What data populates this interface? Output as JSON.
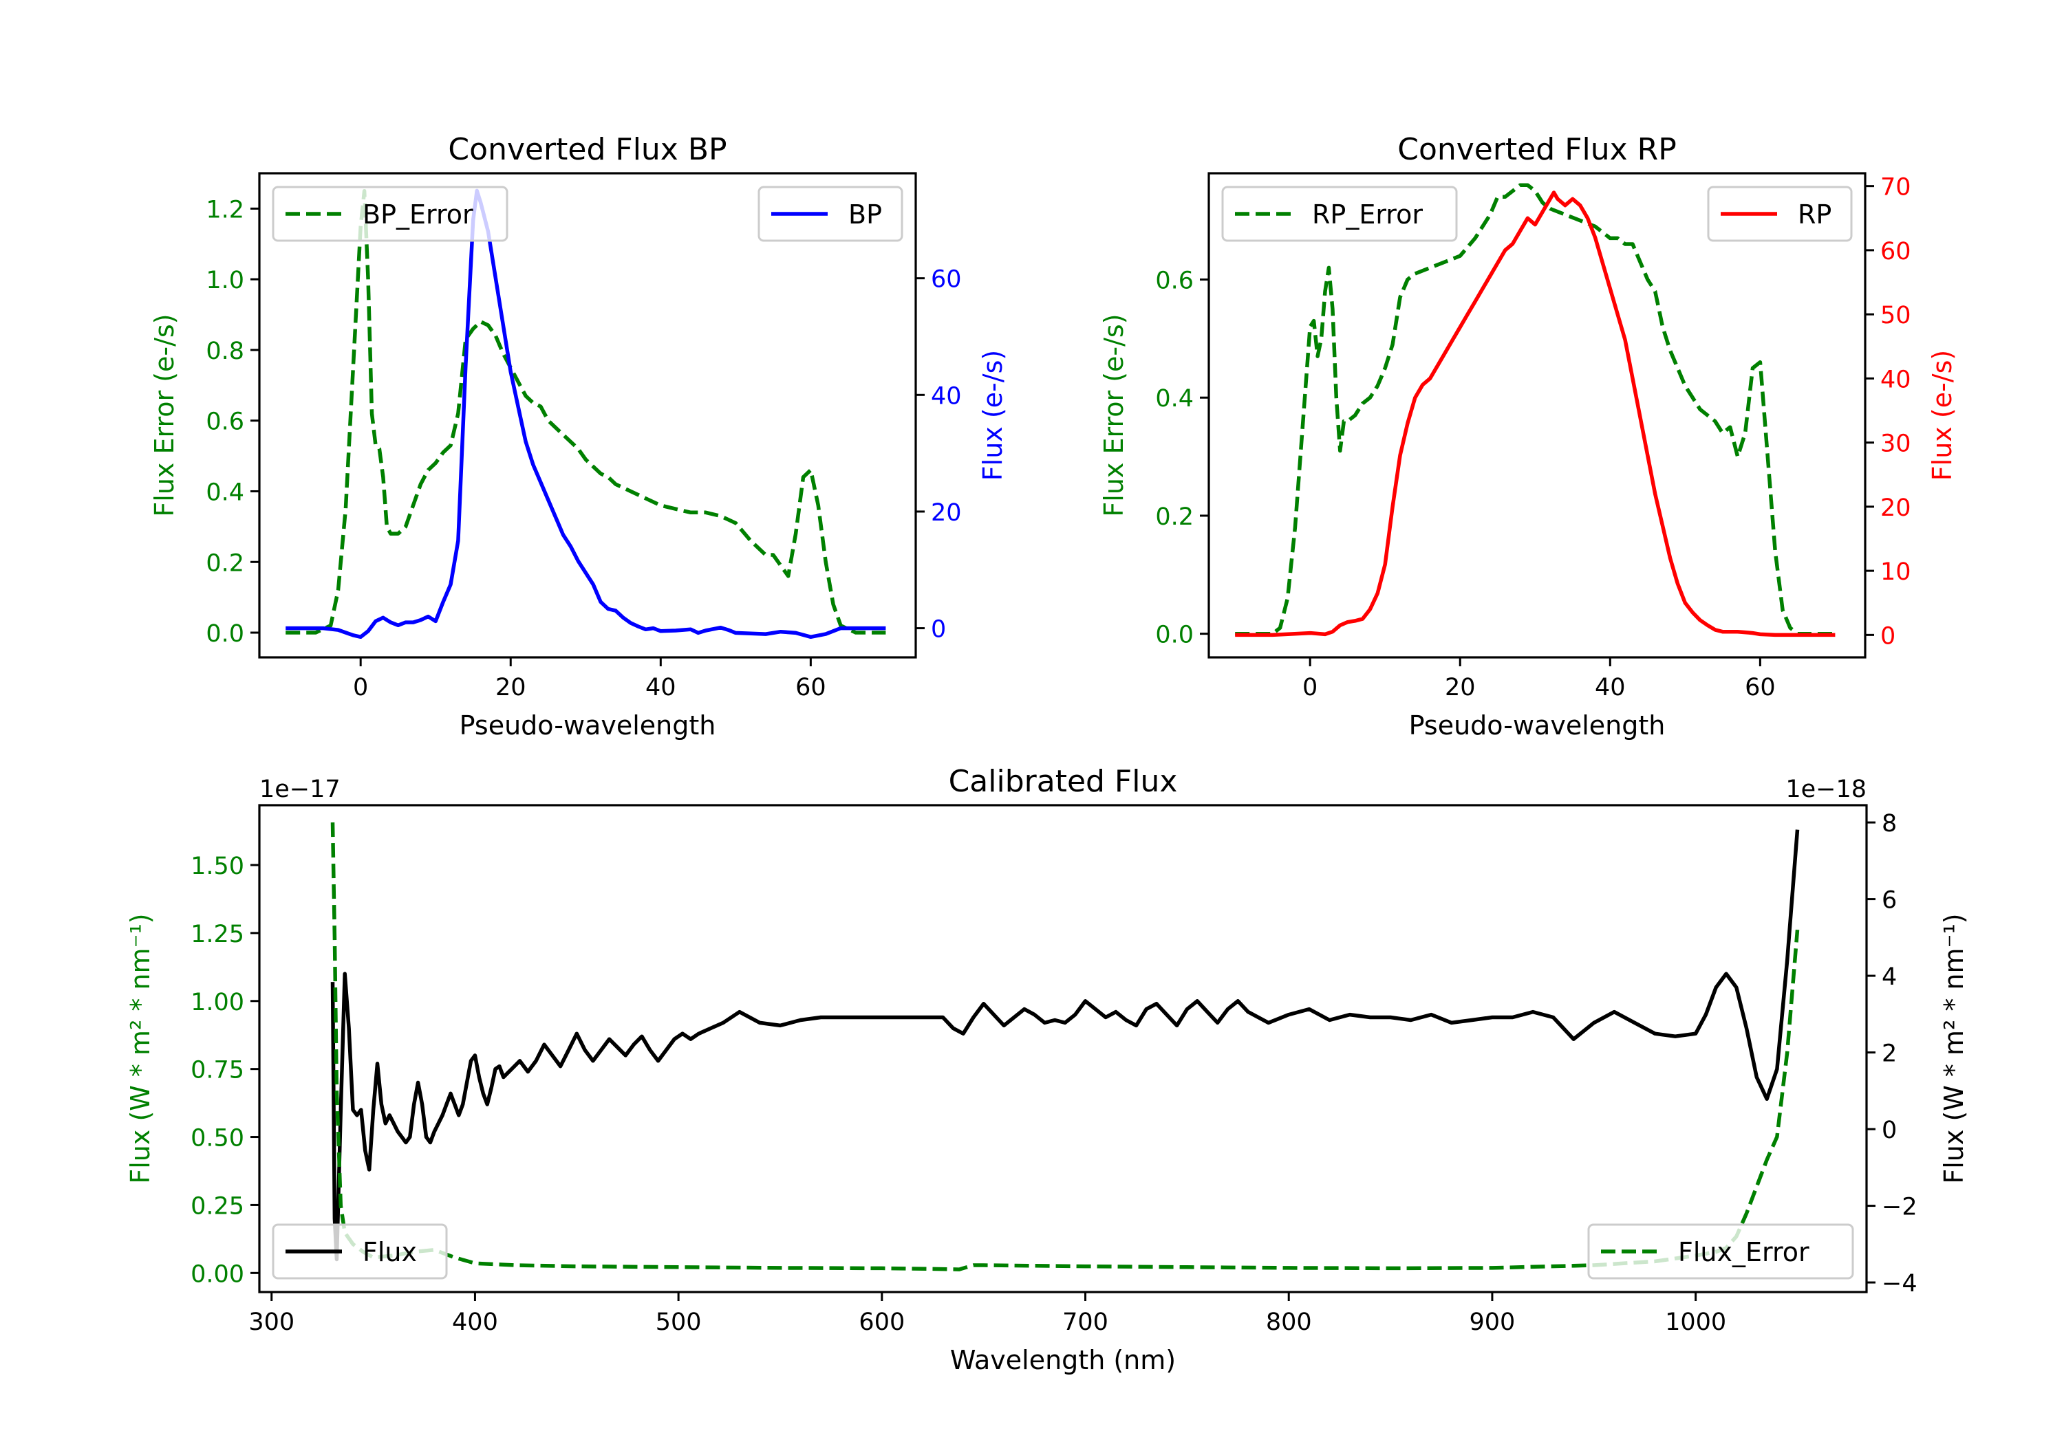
{
  "chart_data": [
    {
      "id": "bp",
      "type": "line",
      "title": "Converted Flux BP",
      "xlabel": "Pseudo-wavelength",
      "ylabel": "Flux Error (e-/s)",
      "ylabel_right": "Flux (e-/s)",
      "xlim": [
        -13.5,
        74
      ],
      "ylim": [
        -0.07,
        1.3
      ],
      "ylim_right": [
        -5,
        78
      ],
      "xticks": [
        0,
        20,
        40,
        60
      ],
      "yticks": [
        0.0,
        0.2,
        0.4,
        0.6,
        0.8,
        1.0,
        1.2
      ],
      "yticks_right": [
        0,
        20,
        40,
        60
      ],
      "ytick_labels": [
        "0.0",
        "0.2",
        "0.4",
        "0.6",
        "0.8",
        "1.0",
        "1.2"
      ],
      "ytick_labels_right": [
        "0",
        "20",
        "40",
        "60"
      ],
      "legend_left": {
        "label": "BP_Error",
        "placement": "upper left"
      },
      "legend_right": {
        "label": "BP",
        "placement": "upper right"
      },
      "series": [
        {
          "name": "BP_Error",
          "axis": "left",
          "color": "#008000",
          "style": "dashed",
          "x": [
            -10,
            -6,
            -4,
            -3,
            -2,
            -1,
            0,
            0.5,
            1,
            1.5,
            2,
            2.5,
            3,
            3.5,
            4,
            4.5,
            5,
            6,
            7,
            8,
            9,
            10,
            11,
            12,
            13,
            14,
            15,
            16,
            17,
            18,
            19,
            20,
            21,
            22,
            23,
            24,
            25,
            26,
            27,
            28,
            29,
            30,
            31,
            32,
            33,
            34,
            35,
            36,
            37,
            38,
            40,
            42,
            44,
            46,
            48,
            50,
            52,
            54,
            55,
            56,
            57,
            58,
            59,
            60,
            61,
            62,
            63,
            64,
            66,
            70
          ],
          "y": [
            0.0,
            0.0,
            0.02,
            0.12,
            0.35,
            0.75,
            1.15,
            1.25,
            1.0,
            0.62,
            0.53,
            0.52,
            0.44,
            0.3,
            0.28,
            0.28,
            0.28,
            0.3,
            0.36,
            0.42,
            0.46,
            0.48,
            0.51,
            0.53,
            0.62,
            0.83,
            0.86,
            0.88,
            0.87,
            0.84,
            0.79,
            0.75,
            0.71,
            0.67,
            0.65,
            0.64,
            0.6,
            0.58,
            0.56,
            0.54,
            0.52,
            0.49,
            0.47,
            0.45,
            0.44,
            0.42,
            0.41,
            0.4,
            0.39,
            0.38,
            0.36,
            0.35,
            0.34,
            0.34,
            0.33,
            0.31,
            0.26,
            0.22,
            0.22,
            0.19,
            0.16,
            0.28,
            0.44,
            0.46,
            0.36,
            0.2,
            0.08,
            0.02,
            0.0,
            0.0
          ]
        },
        {
          "name": "BP",
          "axis": "right",
          "color": "#0000ff",
          "style": "solid",
          "x": [
            -10,
            -5,
            -3,
            -1,
            0,
            1,
            2,
            3,
            4,
            5,
            6,
            7,
            8,
            9,
            10,
            11,
            12,
            13,
            14,
            15,
            15.5,
            16,
            17,
            18,
            19,
            20,
            21,
            22,
            23,
            24,
            25,
            26,
            27,
            28,
            29,
            30,
            31,
            32,
            33,
            34,
            35,
            36,
            37,
            38,
            39,
            40,
            42,
            44,
            45,
            46,
            48,
            49,
            50,
            52,
            54,
            56,
            58,
            60,
            62,
            64,
            66,
            70
          ],
          "y": [
            0,
            0,
            -0.3,
            -1.2,
            -1.5,
            -0.5,
            1.2,
            1.8,
            1.0,
            0.5,
            1.0,
            1.0,
            1.4,
            2.0,
            1.2,
            4.5,
            7.5,
            15,
            45,
            70,
            75,
            73,
            68,
            60,
            52,
            44,
            38,
            32,
            28,
            25,
            22,
            19,
            16,
            14,
            11.5,
            9.5,
            7.5,
            4.5,
            3.3,
            3.0,
            1.8,
            0.9,
            0.3,
            -0.2,
            0,
            -0.5,
            -0.4,
            -0.2,
            -0.8,
            -0.4,
            0.1,
            -0.3,
            -0.8,
            -0.9,
            -1.0,
            -0.6,
            -0.8,
            -1.5,
            -1.0,
            0,
            0,
            0
          ]
        }
      ]
    },
    {
      "id": "rp",
      "type": "line",
      "title": "Converted Flux RP",
      "xlabel": "Pseudo-wavelength",
      "ylabel": "Flux Error (e-/s)",
      "ylabel_right": "Flux (e-/s)",
      "xlim": [
        -13.5,
        74
      ],
      "ylim": [
        -0.04,
        0.78
      ],
      "ylim_right": [
        -3.5,
        72
      ],
      "xticks": [
        0,
        20,
        40,
        60
      ],
      "yticks": [
        0.0,
        0.2,
        0.4,
        0.6
      ],
      "yticks_right": [
        0,
        10,
        20,
        30,
        40,
        50,
        60,
        70
      ],
      "ytick_labels": [
        "0.0",
        "0.2",
        "0.4",
        "0.6"
      ],
      "ytick_labels_right": [
        "0",
        "10",
        "20",
        "30",
        "40",
        "50",
        "60",
        "70"
      ],
      "legend_left": {
        "label": "RP_Error",
        "placement": "upper left"
      },
      "legend_right": {
        "label": "RP",
        "placement": "upper right"
      },
      "series": [
        {
          "name": "RP_Error",
          "axis": "left",
          "color": "#008000",
          "style": "dashed",
          "x": [
            -10,
            -5,
            -4,
            -3,
            -2,
            -1,
            0,
            0.5,
            1,
            1.5,
            2,
            2.5,
            3,
            3.5,
            4,
            4.5,
            5,
            6,
            7,
            8,
            9,
            10,
            11,
            12,
            13,
            14,
            16,
            18,
            20,
            22,
            24,
            25,
            26,
            27,
            28,
            29,
            30,
            31,
            32,
            34,
            36,
            38,
            40,
            41,
            42,
            43,
            44,
            45,
            46,
            47,
            48,
            49,
            50,
            51,
            52,
            53,
            54,
            55,
            56,
            57,
            58,
            59,
            60,
            61,
            62,
            63,
            64,
            65,
            70
          ],
          "y": [
            0.0,
            0.0,
            0.01,
            0.06,
            0.18,
            0.35,
            0.52,
            0.53,
            0.47,
            0.5,
            0.58,
            0.62,
            0.55,
            0.4,
            0.31,
            0.36,
            0.36,
            0.37,
            0.39,
            0.4,
            0.42,
            0.45,
            0.49,
            0.57,
            0.6,
            0.61,
            0.62,
            0.63,
            0.64,
            0.67,
            0.71,
            0.74,
            0.74,
            0.75,
            0.76,
            0.76,
            0.75,
            0.73,
            0.72,
            0.71,
            0.7,
            0.69,
            0.67,
            0.67,
            0.66,
            0.66,
            0.63,
            0.6,
            0.58,
            0.52,
            0.48,
            0.45,
            0.42,
            0.4,
            0.38,
            0.37,
            0.36,
            0.34,
            0.35,
            0.3,
            0.34,
            0.45,
            0.46,
            0.3,
            0.14,
            0.04,
            0.01,
            0.0,
            0.0
          ]
        },
        {
          "name": "RP",
          "axis": "right",
          "color": "#ff0000",
          "style": "solid",
          "x": [
            -10,
            -5,
            0,
            2,
            3,
            4,
            5,
            6,
            7,
            8,
            9,
            10,
            11,
            12,
            13,
            14,
            15,
            16,
            17,
            18,
            19,
            20,
            21,
            22,
            23,
            24,
            25,
            26,
            27,
            28,
            29,
            30,
            31,
            32,
            32.5,
            33,
            34,
            35,
            36,
            37,
            38,
            39,
            40,
            41,
            42,
            43,
            44,
            45,
            46,
            47,
            48,
            49,
            50,
            51,
            52,
            53,
            54,
            55,
            56,
            57,
            58,
            59,
            60,
            62,
            64,
            70
          ],
          "y": [
            0,
            0,
            0.3,
            0.1,
            0.5,
            1.5,
            2.0,
            2.2,
            2.5,
            4.0,
            6.5,
            11,
            20,
            28,
            33,
            37,
            39,
            40,
            42,
            44,
            46,
            48,
            50,
            52,
            54,
            56,
            58,
            60,
            61,
            63,
            65,
            64,
            66,
            68,
            69,
            68,
            67,
            68,
            67,
            65,
            62,
            58,
            54,
            50,
            46,
            40,
            34,
            28,
            22,
            17,
            12,
            8,
            5,
            3.5,
            2.3,
            1.5,
            0.8,
            0.5,
            0.5,
            0.5,
            0.4,
            0.3,
            0.1,
            0,
            0,
            0
          ]
        }
      ]
    },
    {
      "id": "calibrated",
      "type": "line",
      "title": "Calibrated Flux",
      "xlabel": "Wavelength (nm)",
      "ylabel": "Flux (W * m² * nm⁻¹)",
      "ylabel_right": "Flux (W * m² * nm⁻¹)",
      "offset_left": "1e−17",
      "offset_right": "1e−18",
      "xlim": [
        294,
        1084
      ],
      "ylim": [
        -0.07,
        1.72
      ],
      "ylim_right": [
        -4.25,
        8.45
      ],
      "xticks": [
        300,
        400,
        500,
        600,
        700,
        800,
        900,
        1000
      ],
      "yticks": [
        0.0,
        0.25,
        0.5,
        0.75,
        1.0,
        1.25,
        1.5
      ],
      "ytick_labels": [
        "0.00",
        "0.25",
        "0.50",
        "0.75",
        "1.00",
        "1.25",
        "1.50"
      ],
      "yticks_right": [
        -4,
        -2,
        0,
        2,
        4,
        6,
        8
      ],
      "ytick_labels_right": [
        "−4",
        "−2",
        "0",
        "2",
        "4",
        "6",
        "8"
      ],
      "legend_left": {
        "label": "Flux",
        "placement": "lower left"
      },
      "legend_right": {
        "label": "Flux_Error",
        "placement": "lower right"
      },
      "series": [
        {
          "name": "Flux",
          "axis": "left",
          "color": "#000000",
          "style": "solid",
          "scale": "1e-17",
          "x": [
            330,
            331,
            332,
            334,
            336,
            338,
            340,
            342,
            344,
            346,
            348,
            350,
            352,
            354,
            356,
            358,
            360,
            362,
            364,
            366,
            368,
            370,
            372,
            374,
            376,
            378,
            380,
            382,
            384,
            386,
            388,
            390,
            392,
            394,
            396,
            398,
            400,
            402,
            404,
            406,
            408,
            410,
            412,
            414,
            418,
            422,
            426,
            430,
            434,
            438,
            442,
            446,
            450,
            454,
            458,
            462,
            466,
            470,
            474,
            478,
            482,
            486,
            490,
            494,
            498,
            502,
            506,
            510,
            516,
            522,
            530,
            540,
            550,
            560,
            570,
            580,
            590,
            600,
            610,
            620,
            630,
            635,
            640,
            645,
            650,
            655,
            660,
            665,
            670,
            675,
            680,
            685,
            690,
            695,
            700,
            705,
            710,
            715,
            720,
            725,
            730,
            735,
            740,
            745,
            750,
            755,
            760,
            765,
            770,
            775,
            780,
            790,
            800,
            810,
            820,
            830,
            840,
            850,
            860,
            870,
            880,
            890,
            900,
            910,
            920,
            930,
            940,
            950,
            960,
            970,
            980,
            990,
            1000,
            1005,
            1010,
            1015,
            1020,
            1025,
            1030,
            1035,
            1040,
            1045,
            1050
          ],
          "y": [
            1.07,
            0.2,
            0.05,
            0.6,
            1.1,
            0.9,
            0.6,
            0.58,
            0.6,
            0.45,
            0.38,
            0.6,
            0.77,
            0.62,
            0.55,
            0.58,
            0.55,
            0.52,
            0.5,
            0.48,
            0.5,
            0.62,
            0.7,
            0.62,
            0.5,
            0.48,
            0.52,
            0.55,
            0.58,
            0.62,
            0.66,
            0.62,
            0.58,
            0.62,
            0.7,
            0.78,
            0.8,
            0.72,
            0.66,
            0.62,
            0.68,
            0.75,
            0.76,
            0.72,
            0.75,
            0.78,
            0.74,
            0.78,
            0.84,
            0.8,
            0.76,
            0.82,
            0.88,
            0.82,
            0.78,
            0.82,
            0.86,
            0.83,
            0.8,
            0.84,
            0.87,
            0.82,
            0.78,
            0.82,
            0.86,
            0.88,
            0.86,
            0.88,
            0.9,
            0.92,
            0.96,
            0.92,
            0.91,
            0.93,
            0.94,
            0.94,
            0.94,
            0.94,
            0.94,
            0.94,
            0.94,
            0.9,
            0.88,
            0.94,
            0.99,
            0.95,
            0.91,
            0.94,
            0.97,
            0.95,
            0.92,
            0.93,
            0.92,
            0.95,
            1.0,
            0.97,
            0.94,
            0.96,
            0.93,
            0.91,
            0.97,
            0.99,
            0.95,
            0.91,
            0.97,
            1.0,
            0.96,
            0.92,
            0.97,
            1.0,
            0.96,
            0.92,
            0.95,
            0.97,
            0.93,
            0.95,
            0.94,
            0.94,
            0.93,
            0.95,
            0.92,
            0.93,
            0.94,
            0.94,
            0.96,
            0.94,
            0.86,
            0.92,
            0.96,
            0.92,
            0.88,
            0.87,
            0.88,
            0.95,
            1.05,
            1.1,
            1.05,
            0.9,
            0.72,
            0.64,
            0.75,
            1.15,
            1.63
          ]
        },
        {
          "name": "Flux_Error",
          "axis": "right",
          "color": "#008000",
          "style": "dashed",
          "scale": "1e-18",
          "x": [
            330,
            331,
            332,
            334,
            336,
            340,
            345,
            350,
            360,
            370,
            380,
            390,
            400,
            420,
            450,
            500,
            550,
            600,
            630,
            638,
            645,
            650,
            700,
            750,
            800,
            850,
            900,
            950,
            980,
            1000,
            1010,
            1015,
            1020,
            1025,
            1030,
            1035,
            1040,
            1045,
            1050
          ],
          "y": [
            8.0,
            5.0,
            1.0,
            -2.0,
            -2.7,
            -3.0,
            -3.2,
            -3.35,
            -3.3,
            -3.2,
            -3.15,
            -3.35,
            -3.5,
            -3.55,
            -3.58,
            -3.6,
            -3.62,
            -3.63,
            -3.65,
            -3.66,
            -3.55,
            -3.55,
            -3.58,
            -3.6,
            -3.62,
            -3.63,
            -3.62,
            -3.55,
            -3.45,
            -3.3,
            -3.2,
            -3.1,
            -2.8,
            -2.2,
            -1.5,
            -0.8,
            -0.2,
            2.0,
            5.2
          ]
        }
      ]
    }
  ]
}
